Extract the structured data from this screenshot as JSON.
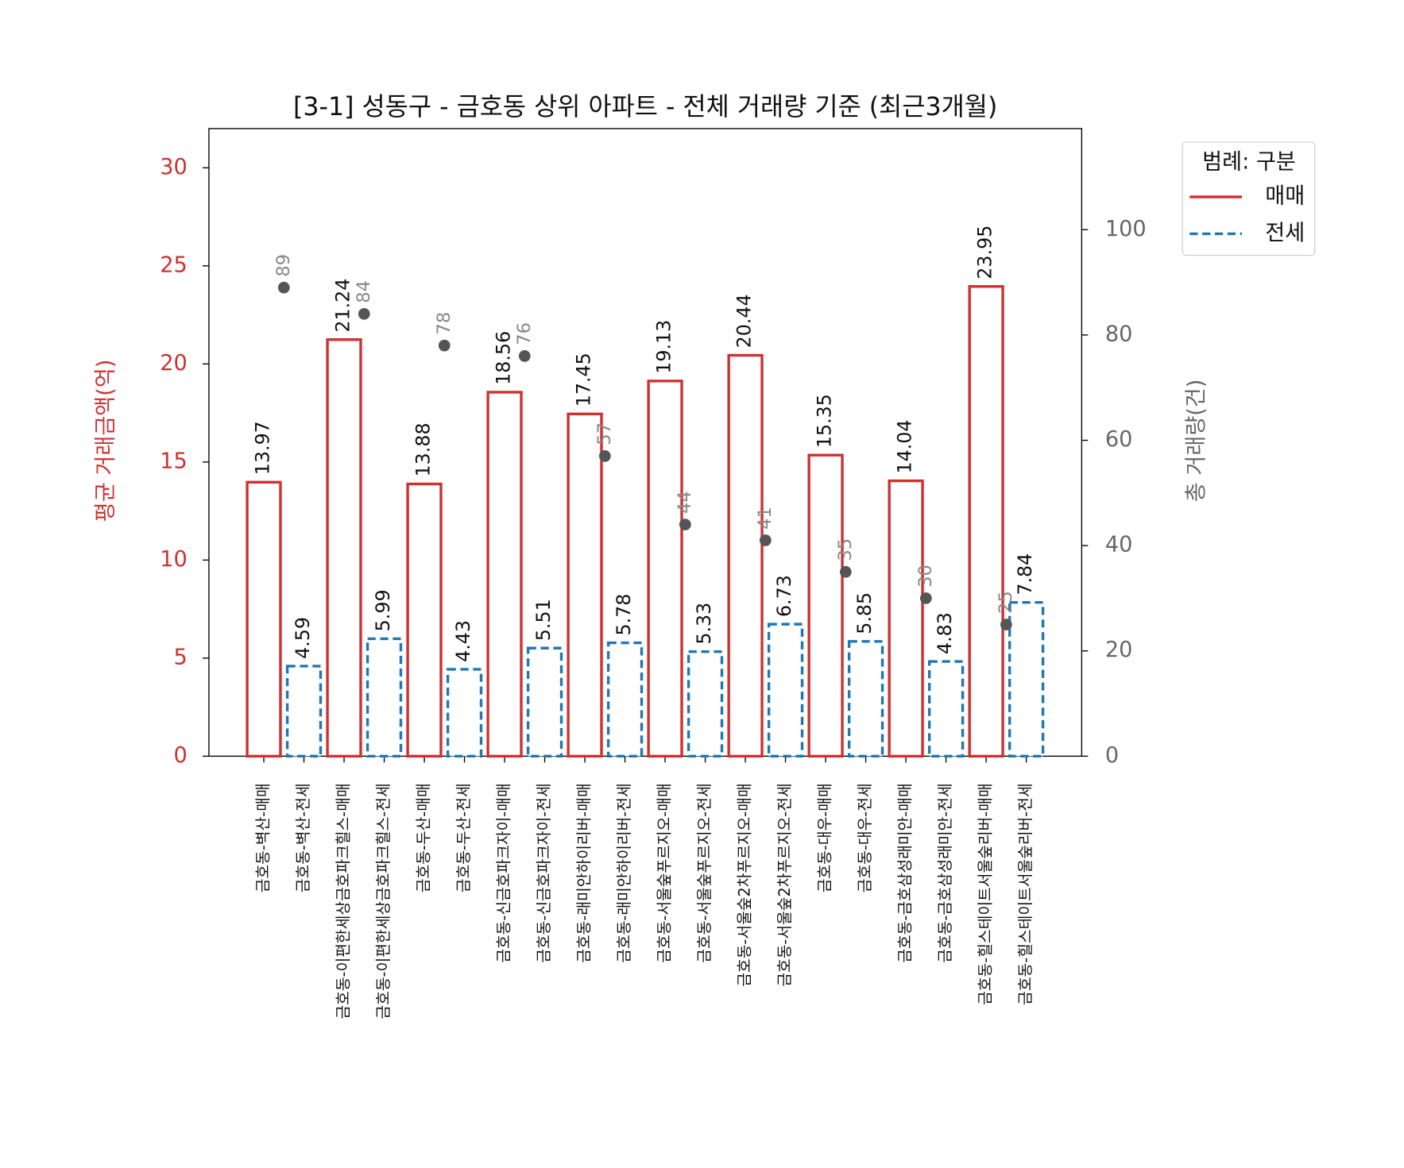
{
  "chart_data": {
    "type": "bar",
    "title": "[3-1] 성동구 - 금호동 상위 아파트 - 전체 거래량 기준 (최근3개월)",
    "y_label": "평균 거래금액(억)",
    "y2_label": "총 거래량(건)",
    "legend_title": "범례: 구분",
    "legend_position": "outside-upper-right",
    "categories": [
      "금호동-벽산-매매",
      "금호동-벽산-전세",
      "금호동-이편한세상금호파크힐스-매매",
      "금호동-이편한세상금호파크힐스-전세",
      "금호동-두산-매매",
      "금호동-두산-전세",
      "금호동-신금호파크자이-매매",
      "금호동-신금호파크자이-전세",
      "금호동-래미안하이리버-매매",
      "금호동-래미안하이리버-전세",
      "금호동-서울숲푸르지오-매매",
      "금호동-서울숲푸르지오-전세",
      "금호동-서울숲2차푸르지오-매매",
      "금호동-서울숲2차푸르지오-전세",
      "금호동-대우-매매",
      "금호동-대우-전세",
      "금호동-금호삼성래미안-매매",
      "금호동-금호삼성래미안-전세",
      "금호동-힐스테이트서울숲리버-매매",
      "금호동-힐스테이트서울숲리버-전세"
    ],
    "series": [
      {
        "name": "매매",
        "color": "#d03030",
        "linestyle": "solid",
        "values": [
          13.97,
          null,
          21.24,
          null,
          13.88,
          null,
          18.56,
          null,
          17.45,
          null,
          19.13,
          null,
          20.44,
          null,
          15.35,
          null,
          14.04,
          null,
          23.95,
          null
        ]
      },
      {
        "name": "전세",
        "color": "#1f77b4",
        "linestyle": "dashed",
        "values": [
          null,
          4.59,
          null,
          5.99,
          null,
          4.43,
          null,
          5.51,
          null,
          5.78,
          null,
          5.33,
          null,
          6.73,
          null,
          5.85,
          null,
          4.83,
          null,
          7.84
        ]
      }
    ],
    "volume": {
      "type": "scatter",
      "axis": "y2",
      "color": "#555555",
      "values": [
        89,
        84,
        78,
        76,
        57,
        44,
        41,
        35,
        30,
        25
      ]
    },
    "ylim": [
      0,
      32
    ],
    "yticks": [
      0,
      5,
      10,
      15,
      20,
      25,
      30
    ],
    "y2lim": [
      0,
      119.2
    ],
    "y2ticks": [
      0,
      20,
      40,
      60,
      80,
      100
    ]
  }
}
